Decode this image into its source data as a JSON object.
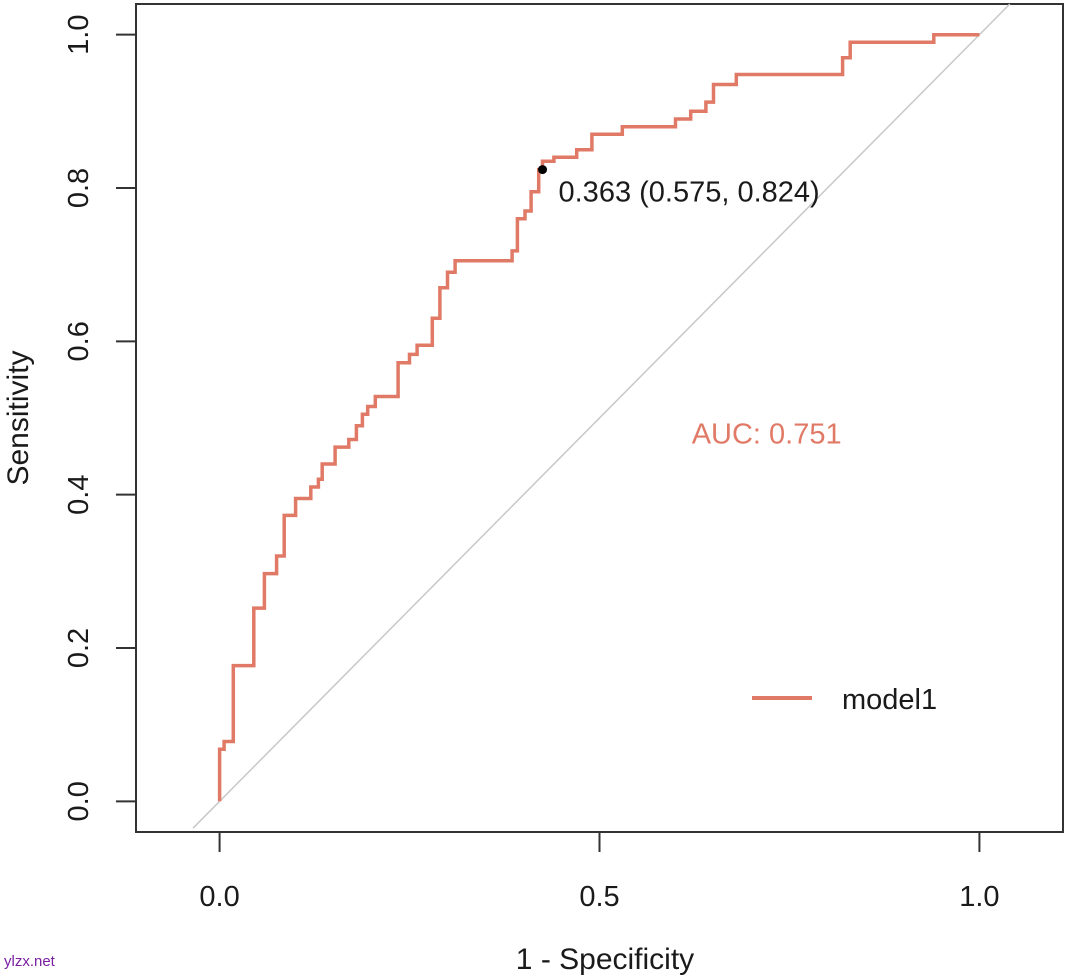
{
  "chart_data": {
    "type": "line",
    "xlabel": "1 - Specificity",
    "ylabel": "Sensitivity",
    "xlim": [
      -0.11,
      1.11
    ],
    "ylim": [
      -0.04,
      1.04
    ],
    "x_ticks": [
      0.0,
      0.5,
      1.0
    ],
    "x_tick_labels": [
      "0.0",
      "0.5",
      "1.0"
    ],
    "y_ticks": [
      0.0,
      0.2,
      0.4,
      0.6,
      0.8,
      1.0
    ],
    "y_tick_labels": [
      "0.0",
      "0.2",
      "0.4",
      "0.6",
      "0.8",
      "1.0"
    ],
    "grid": false,
    "colors": {
      "roc": "#e07a66",
      "diagonal": "#c8c8c8",
      "axis": "#333333",
      "point": "#000000"
    },
    "diagonal": {
      "x": [
        0,
        1
      ],
      "y": [
        0,
        1
      ]
    },
    "series": [
      {
        "name": "model1",
        "x": [
          0.0,
          0.0,
          0.006,
          0.006,
          0.018,
          0.018,
          0.045,
          0.045,
          0.059,
          0.059,
          0.075,
          0.075,
          0.085,
          0.085,
          0.1,
          0.1,
          0.12,
          0.12,
          0.13,
          0.13,
          0.135,
          0.135,
          0.152,
          0.152,
          0.17,
          0.17,
          0.18,
          0.18,
          0.188,
          0.188,
          0.195,
          0.195,
          0.205,
          0.205,
          0.235,
          0.235,
          0.25,
          0.25,
          0.26,
          0.26,
          0.28,
          0.28,
          0.29,
          0.29,
          0.3,
          0.3,
          0.31,
          0.31,
          0.385,
          0.385,
          0.392,
          0.392,
          0.402,
          0.402,
          0.41,
          0.41,
          0.42,
          0.42,
          0.425,
          0.425,
          0.44,
          0.44,
          0.47,
          0.47,
          0.49,
          0.49,
          0.53,
          0.53,
          0.6,
          0.6,
          0.62,
          0.62,
          0.64,
          0.64,
          0.65,
          0.65,
          0.68,
          0.68,
          0.82,
          0.82,
          0.83,
          0.83,
          0.94,
          0.94,
          1.0
        ],
        "y": [
          0.0,
          0.068,
          0.068,
          0.078,
          0.078,
          0.177,
          0.177,
          0.252,
          0.252,
          0.297,
          0.297,
          0.32,
          0.32,
          0.373,
          0.373,
          0.395,
          0.395,
          0.41,
          0.41,
          0.42,
          0.42,
          0.44,
          0.44,
          0.462,
          0.462,
          0.472,
          0.472,
          0.49,
          0.49,
          0.505,
          0.505,
          0.515,
          0.515,
          0.528,
          0.528,
          0.572,
          0.572,
          0.583,
          0.583,
          0.595,
          0.595,
          0.63,
          0.63,
          0.67,
          0.67,
          0.69,
          0.69,
          0.705,
          0.705,
          0.718,
          0.718,
          0.76,
          0.76,
          0.77,
          0.77,
          0.795,
          0.795,
          0.824,
          0.824,
          0.835,
          0.835,
          0.84,
          0.84,
          0.85,
          0.85,
          0.87,
          0.87,
          0.88,
          0.88,
          0.89,
          0.89,
          0.9,
          0.9,
          0.912,
          0.912,
          0.935,
          0.935,
          0.948,
          0.948,
          0.97,
          0.97,
          0.99,
          0.99,
          1.0,
          1.0
        ]
      }
    ],
    "point": {
      "x": 0.425,
      "y": 0.824,
      "label": "0.363 (0.575, 0.824)"
    },
    "auc_label": "AUC: 0.751",
    "auc_label_pos": {
      "x": 0.72,
      "y": 0.48
    },
    "legend": {
      "position": "bottom-right",
      "entries": [
        "model1"
      ]
    }
  },
  "watermark": "ylzx.net"
}
